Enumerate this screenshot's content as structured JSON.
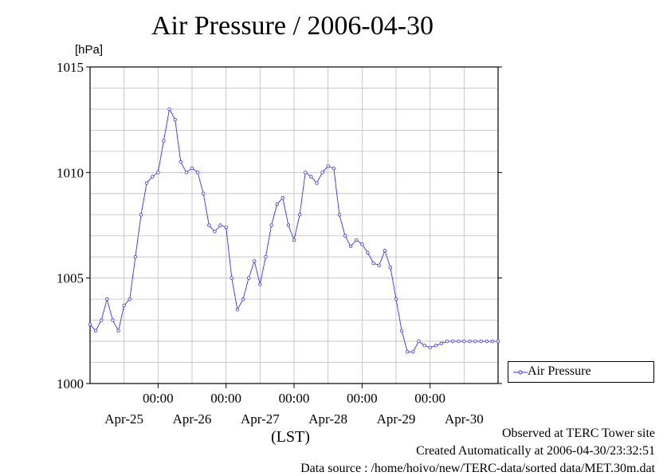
{
  "chart_data": {
    "type": "line",
    "title": "Air Pressure / 2006-04-30",
    "ylabel": "[hPa]",
    "xlabel": "(LST)",
    "ylim": [
      1000,
      1015
    ],
    "yticks": [
      1000,
      1005,
      1010,
      1015
    ],
    "xlim_hours": [
      0,
      144
    ],
    "time_tick_labels": [
      "00:00",
      "00:00",
      "00:00",
      "00:00",
      "00:00"
    ],
    "date_labels": [
      "Apr-25",
      "Apr-26",
      "Apr-27",
      "Apr-28",
      "Apr-29",
      "Apr-30"
    ],
    "grid": true,
    "legend_position": "right",
    "series": [
      {
        "name": "Air Pressure",
        "color": "#3333ff",
        "x_hours": [
          0,
          2,
          4,
          6,
          8,
          10,
          12,
          14,
          16,
          18,
          20,
          22,
          24,
          26,
          28,
          30,
          32,
          34,
          36,
          38,
          40,
          42,
          44,
          46,
          48,
          50,
          52,
          54,
          56,
          58,
          60,
          62,
          64,
          66,
          68,
          70,
          72,
          74,
          76,
          78,
          80,
          82,
          84,
          86,
          88,
          90,
          92,
          94,
          96,
          98,
          100,
          102,
          104,
          106,
          108,
          110,
          112,
          114,
          116,
          118,
          120,
          122,
          124,
          126,
          128,
          130,
          132,
          134,
          136,
          138,
          140,
          142,
          144
        ],
        "values": [
          1002.8,
          1002.5,
          1003.0,
          1004.0,
          1003.0,
          1002.5,
          1003.7,
          1004.0,
          1006.0,
          1008.0,
          1009.5,
          1009.8,
          1010.0,
          1011.5,
          1013.0,
          1012.5,
          1010.5,
          1010.0,
          1010.2,
          1010.0,
          1009.0,
          1007.5,
          1007.2,
          1007.5,
          1007.4,
          1005.0,
          1003.5,
          1004.0,
          1005.0,
          1005.8,
          1004.7,
          1006.0,
          1007.5,
          1008.5,
          1008.8,
          1007.5,
          1006.8,
          1008.0,
          1010.0,
          1009.8,
          1009.5,
          1010.0,
          1010.3,
          1010.2,
          1008.0,
          1007.0,
          1006.5,
          1006.8,
          1006.6,
          1006.2,
          1005.7,
          1005.6,
          1006.3,
          1005.5,
          1004.0,
          1002.5,
          1001.5,
          1001.5,
          1002.0,
          1001.8,
          1001.7,
          1001.8,
          1001.9,
          1002.0,
          1002.0,
          1002.0,
          1002.0,
          1002.0,
          1002.0,
          1002.0,
          1002.0,
          1002.0,
          1002.0
        ]
      }
    ]
  },
  "legend": {
    "label": "Air Pressure"
  },
  "footer": {
    "line1": "Observed at TERC Tower site",
    "line2": "Created Automatically at 2006-04-30/23:32:51",
    "line3": "Data source : /home/hoivo/new/TERC-data/sorted  data/MET.30m.dat"
  }
}
